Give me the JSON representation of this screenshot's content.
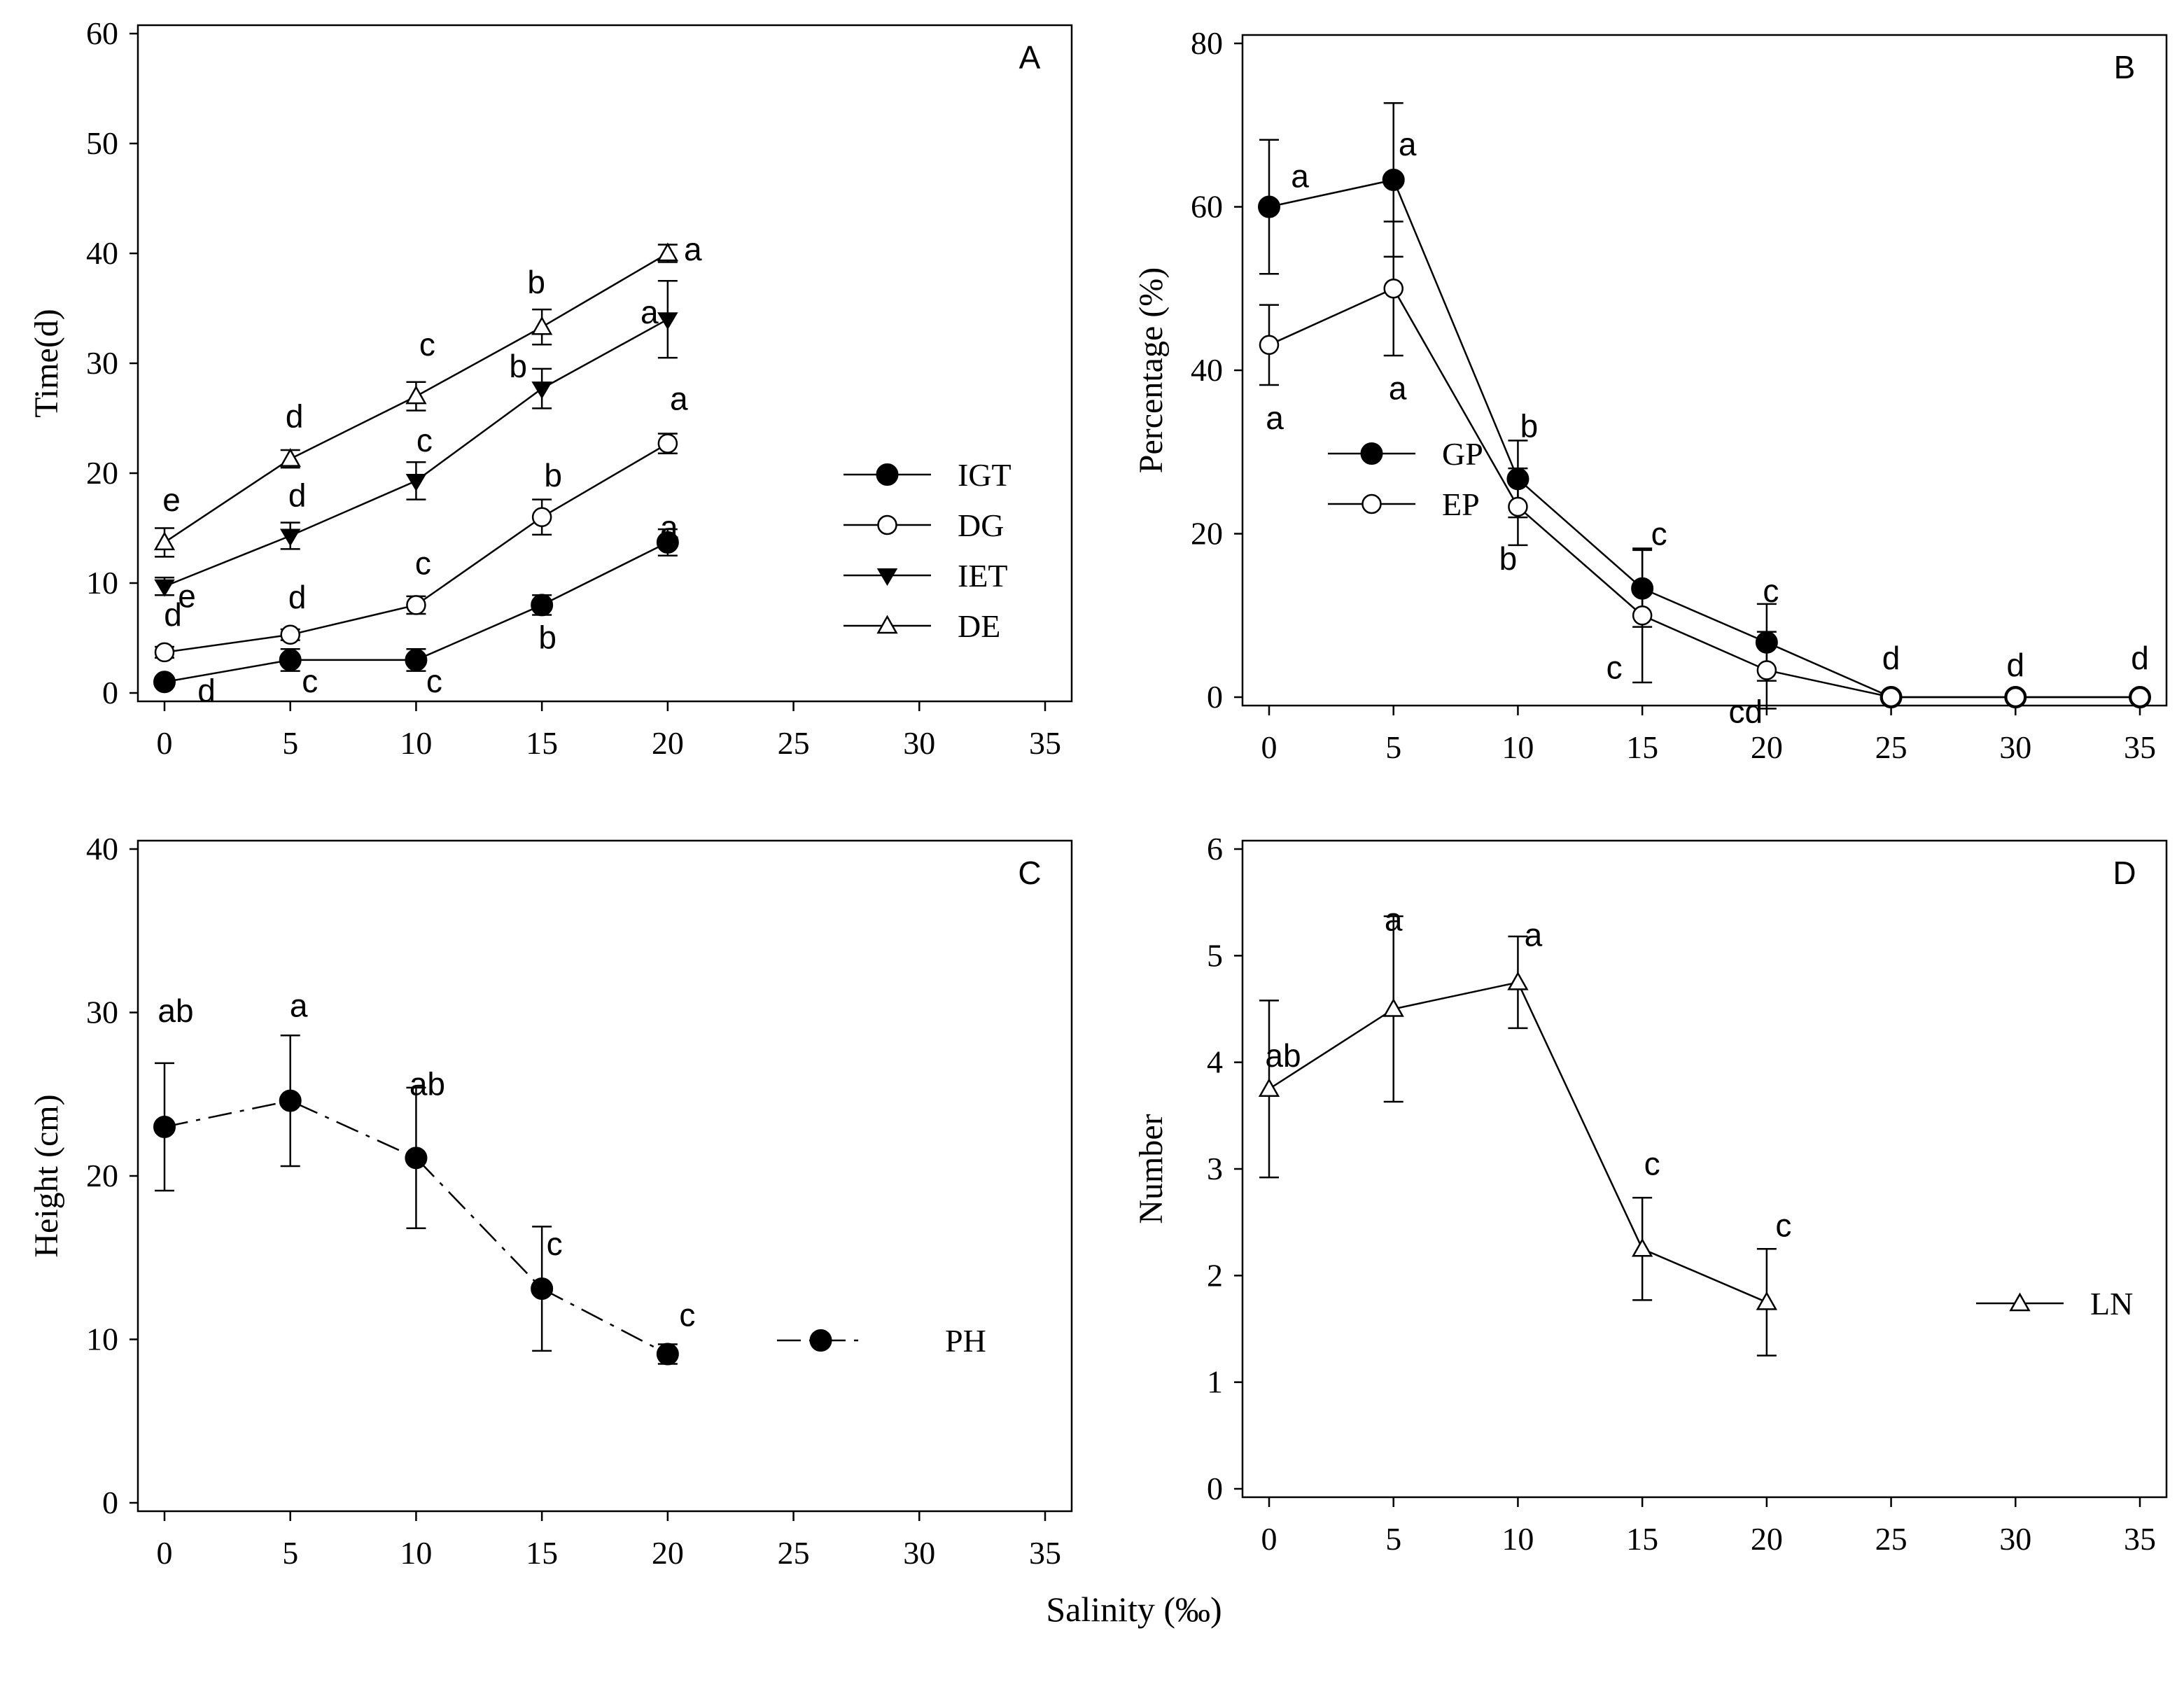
{
  "figure": {
    "xlabel": "Salinity (‰)"
  },
  "chart_data": [
    {
      "id": "A",
      "type": "line",
      "panel_label": "A",
      "ylabel": "Time(d)",
      "xlim": [
        0,
        35
      ],
      "ylim": [
        0,
        60
      ],
      "xticks": [
        0,
        5,
        10,
        15,
        20,
        25,
        30,
        35
      ],
      "yticks": [
        0,
        10,
        20,
        30,
        40,
        50,
        60
      ],
      "legend": "right",
      "series": [
        {
          "name": "IGT",
          "marker": "circle-filled",
          "line": "solid",
          "x": [
            0,
            5,
            10,
            15,
            20
          ],
          "y": [
            1,
            3,
            3,
            8,
            13.7
          ],
          "err": [
            0.4,
            1.0,
            1.0,
            0.9,
            1.2
          ],
          "labels": [
            "d",
            "c",
            "c",
            "b",
            "a"
          ]
        },
        {
          "name": "DG",
          "marker": "circle-open",
          "line": "solid",
          "x": [
            0,
            5,
            10,
            15,
            20
          ],
          "y": [
            3.7,
            5.3,
            8.0,
            16.0,
            22.7
          ],
          "err": [
            0.5,
            0.5,
            0.8,
            1.6,
            0.9
          ],
          "labels": [
            "d",
            "d",
            "c",
            "b",
            "a"
          ]
        },
        {
          "name": "IET",
          "marker": "triangle-down-filled",
          "line": "solid",
          "x": [
            0,
            5,
            10,
            15,
            20
          ],
          "y": [
            9.7,
            14.3,
            19.3,
            27.7,
            34.0
          ],
          "err": [
            0.8,
            1.2,
            1.7,
            1.8,
            3.5
          ],
          "labels": [
            "e",
            "d",
            "c",
            "b",
            "a"
          ]
        },
        {
          "name": "DE",
          "marker": "triangle-up-open",
          "line": "solid",
          "x": [
            0,
            5,
            10,
            15,
            20
          ],
          "y": [
            13.7,
            21.3,
            27.0,
            33.3,
            40.0
          ],
          "err": [
            1.3,
            0.8,
            1.3,
            1.6,
            0.8
          ],
          "labels": [
            "e",
            "d",
            "c",
            "b",
            "a"
          ]
        }
      ]
    },
    {
      "id": "B",
      "type": "line",
      "panel_label": "B",
      "ylabel": "Percentage (%)",
      "xlim": [
        0,
        35
      ],
      "ylim": [
        0,
        80
      ],
      "xticks": [
        0,
        5,
        10,
        15,
        20,
        25,
        30,
        35
      ],
      "yticks": [
        0,
        20,
        40,
        60,
        80
      ],
      "legend": "right",
      "series": [
        {
          "name": "GP",
          "marker": "circle-filled",
          "line": "solid",
          "x": [
            0,
            5,
            10,
            15,
            20,
            25,
            30,
            35
          ],
          "y": [
            60,
            63.3,
            26.7,
            13.3,
            6.7,
            0,
            0,
            0
          ],
          "err": [
            8.2,
            9.4,
            4.7,
            4.7,
            4.7,
            0,
            0,
            0
          ],
          "labels": [
            "a",
            "a",
            "b",
            "c",
            "c",
            "d",
            "d",
            "d"
          ]
        },
        {
          "name": "EP",
          "marker": "circle-open",
          "line": "solid",
          "x": [
            0,
            5,
            10,
            15,
            20,
            25,
            30,
            35
          ],
          "y": [
            43.1,
            50,
            23.3,
            10,
            3.3,
            0,
            0,
            0
          ],
          "err": [
            4.9,
            8.2,
            4.7,
            8.2,
            4.7,
            0,
            0,
            0
          ],
          "labels": [
            "a",
            "a",
            "b",
            "c",
            "cd",
            "",
            "",
            ""
          ]
        }
      ]
    },
    {
      "id": "C",
      "type": "line",
      "panel_label": "C",
      "ylabel": "Height (cm)",
      "xlim": [
        0,
        35
      ],
      "ylim": [
        0,
        40
      ],
      "xticks": [
        0,
        5,
        10,
        15,
        20,
        25,
        30,
        35
      ],
      "yticks": [
        0,
        10,
        20,
        30,
        40
      ],
      "legend": "right",
      "series": [
        {
          "name": "PH",
          "marker": "circle-filled",
          "line": "dash-dot",
          "x": [
            0,
            5,
            10,
            15,
            20
          ],
          "y": [
            23.0,
            24.6,
            21.1,
            13.1,
            9.1
          ],
          "err": [
            3.9,
            4.0,
            4.3,
            3.8,
            0.6
          ],
          "labels": [
            "ab",
            "a",
            "ab",
            "c",
            "c"
          ]
        }
      ]
    },
    {
      "id": "D",
      "type": "line",
      "panel_label": "D",
      "ylabel": "Number",
      "xlim": [
        0,
        35
      ],
      "ylim": [
        0,
        6
      ],
      "xticks": [
        0,
        5,
        10,
        15,
        20,
        25,
        30,
        35
      ],
      "yticks": [
        0,
        1,
        2,
        3,
        4,
        5,
        6
      ],
      "legend": "right",
      "series": [
        {
          "name": "LN",
          "marker": "triangle-up-open",
          "line": "solid",
          "x": [
            0,
            5,
            10,
            15,
            20
          ],
          "y": [
            3.75,
            4.5,
            4.75,
            2.25,
            1.75
          ],
          "err": [
            0.83,
            0.87,
            0.43,
            0.48,
            0.5
          ],
          "labels": [
            "ab",
            "a",
            "a",
            "c",
            "c"
          ]
        }
      ]
    }
  ]
}
